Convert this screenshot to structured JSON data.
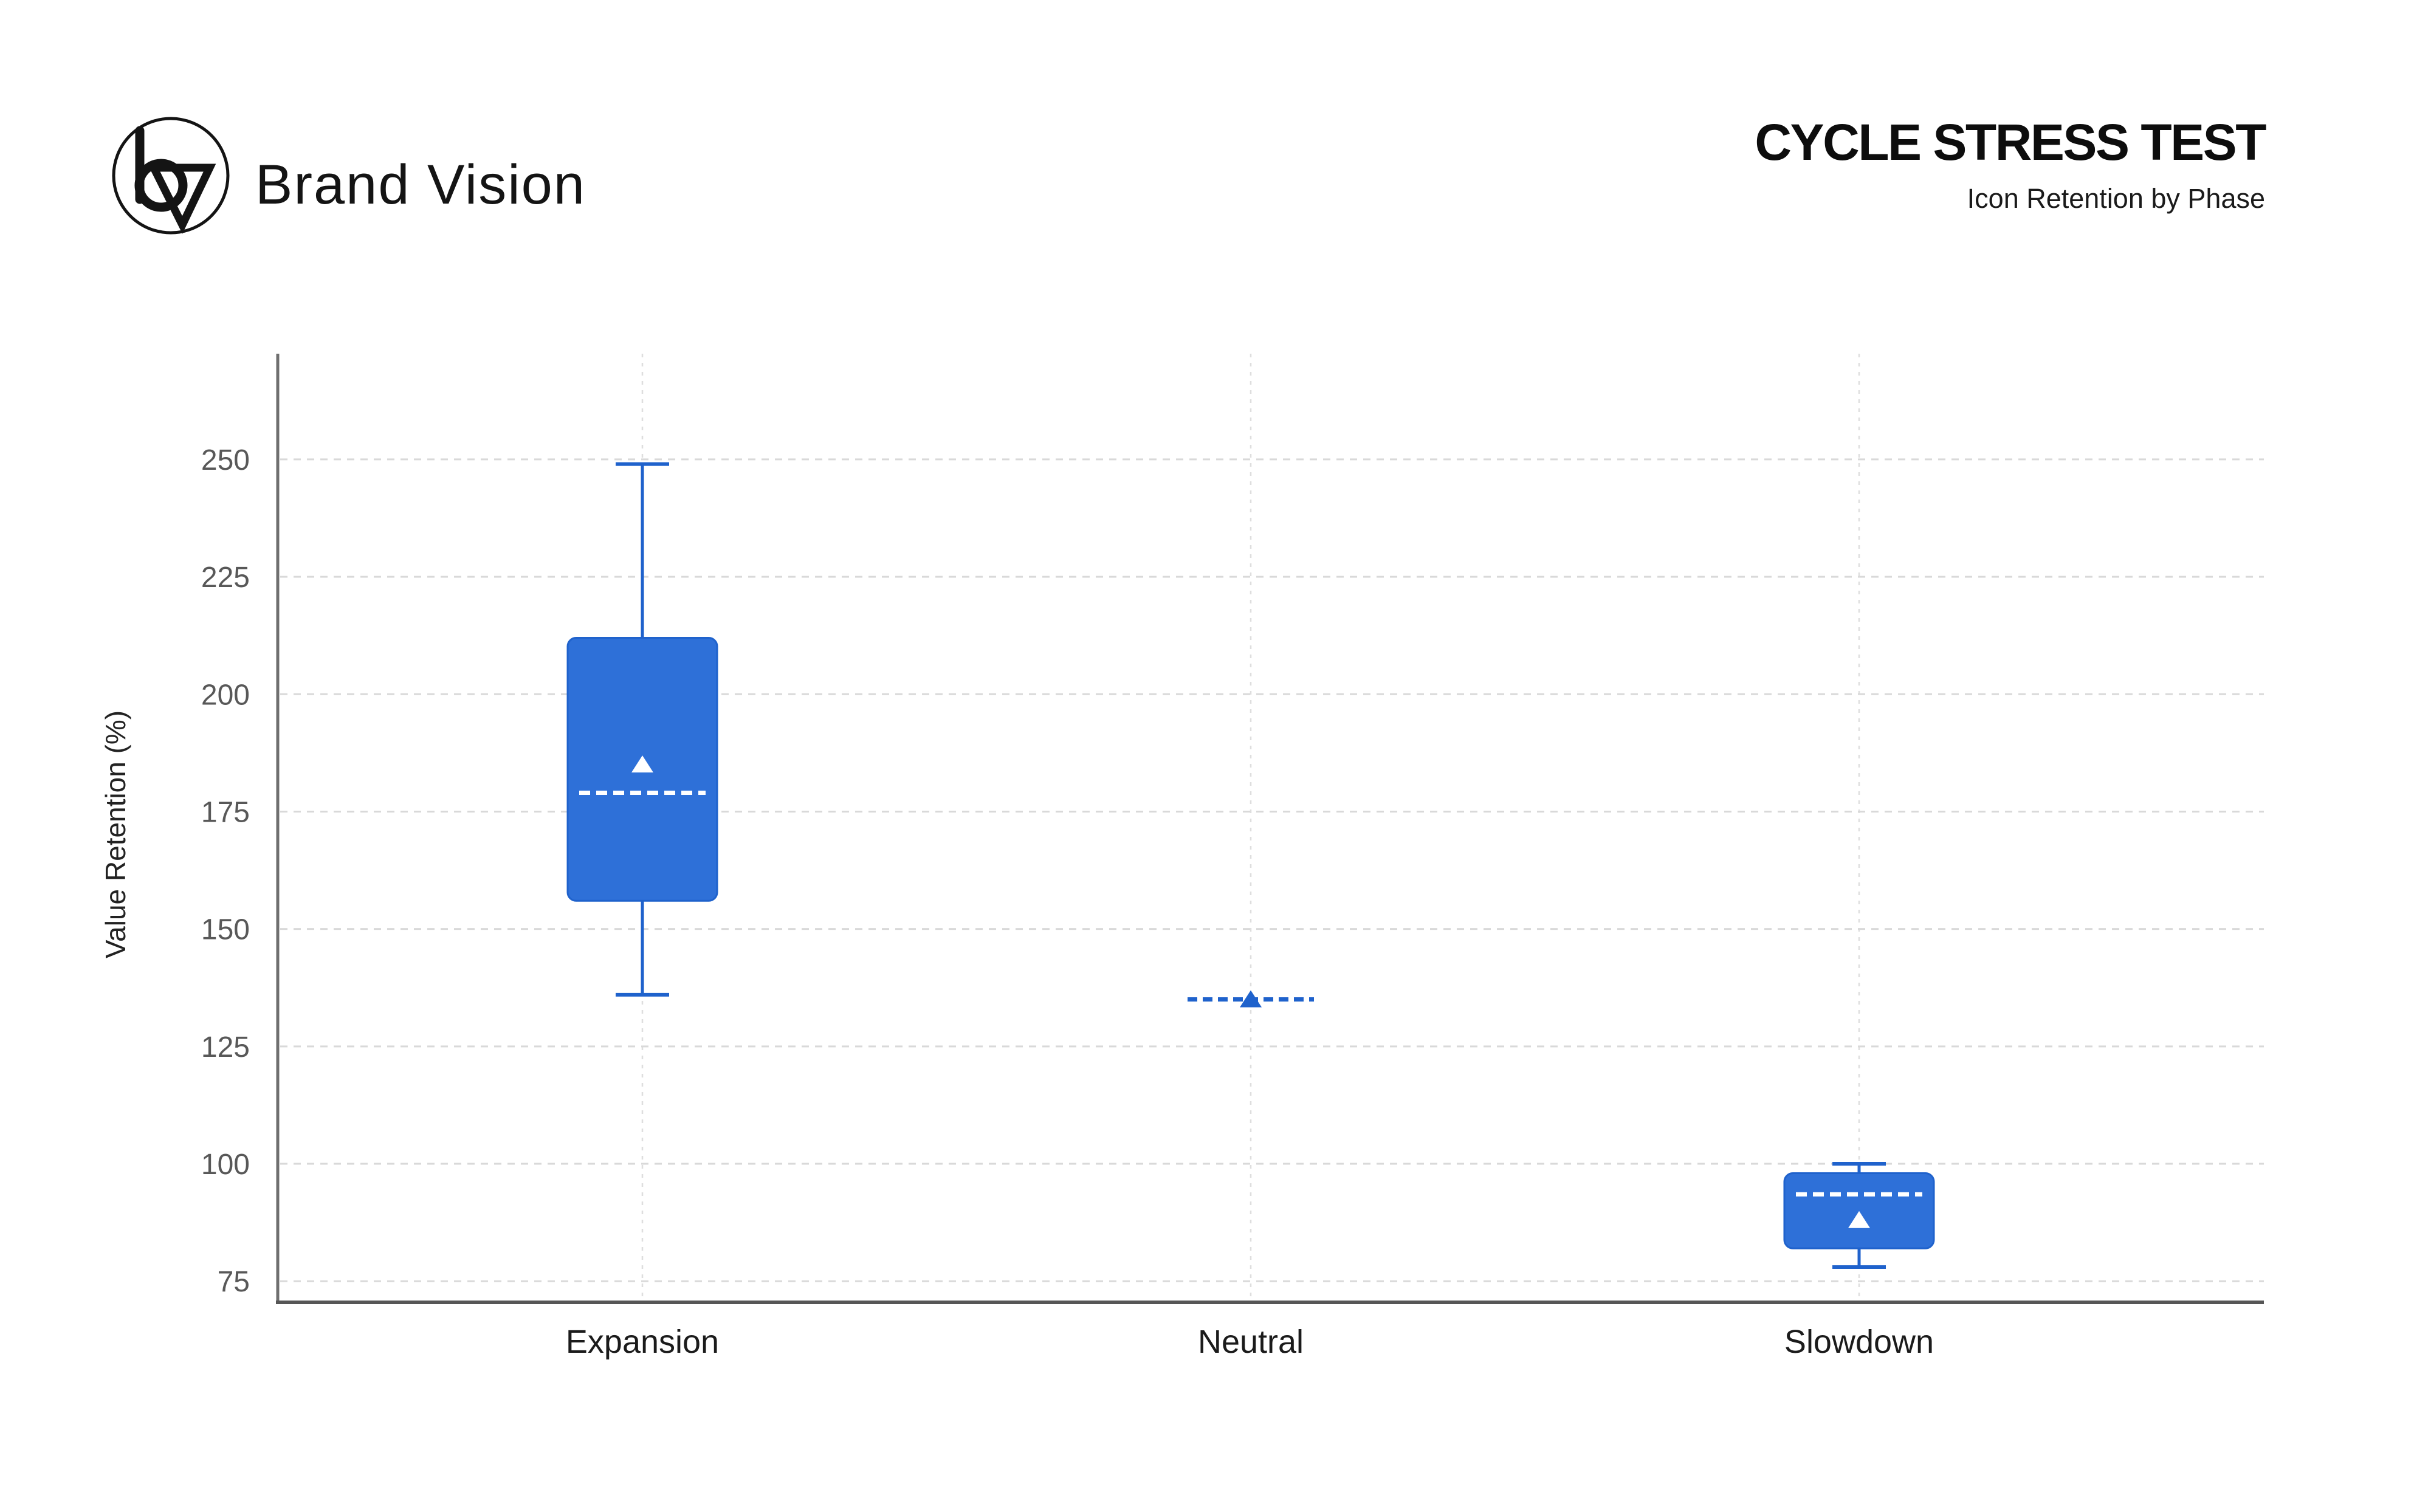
{
  "header": {
    "brand": "Brand Vision",
    "title": "CYCLE STRESS TEST",
    "subtitle": "Icon Retention by Phase"
  },
  "chart_data": {
    "type": "box",
    "title": "CYCLE STRESS TEST",
    "subtitle": "Icon Retention by Phase",
    "xlabel": "",
    "ylabel": "Value Retention (%)",
    "categories": [
      "Expansion",
      "Neutral",
      "Slowdown"
    ],
    "yticks": [
      250,
      225,
      200,
      175,
      150,
      125,
      100,
      75
    ],
    "ylim": [
      70.5,
      272.5
    ],
    "grid": {
      "horizontal": "dashed",
      "vertical": "dashed-at-category-centers"
    },
    "legend": "none",
    "series": [
      {
        "label": "Expansion",
        "whisker_low": 136,
        "q1": 156,
        "median": 179,
        "mean": 185,
        "q3": 212,
        "whisker_high": 249,
        "degenerate": false
      },
      {
        "label": "Neutral",
        "whisker_low": 135,
        "q1": 135,
        "median": 135,
        "mean": 135,
        "q3": 135,
        "whisker_high": 135,
        "degenerate": true
      },
      {
        "label": "Slowdown",
        "whisker_low": 78,
        "q1": 82,
        "median": 93.5,
        "mean": 88,
        "q3": 98,
        "whisker_high": 100,
        "degenerate": false
      }
    ],
    "colors": {
      "box_fill": "#2e70d8",
      "box_line": "#1f62cc",
      "median_on_box": "#ffffff",
      "mean_marker_on_box": "#ffffff",
      "grid_horizontal": "#d9d9d9",
      "grid_vertical": "#dedede",
      "spine_left": "#6f6f6f",
      "spine_bottom": "#565656",
      "ytick_label": "#585858",
      "xtick_label": "#1b1b1b",
      "axis_label": "#222222",
      "ink": "#141414"
    }
  }
}
